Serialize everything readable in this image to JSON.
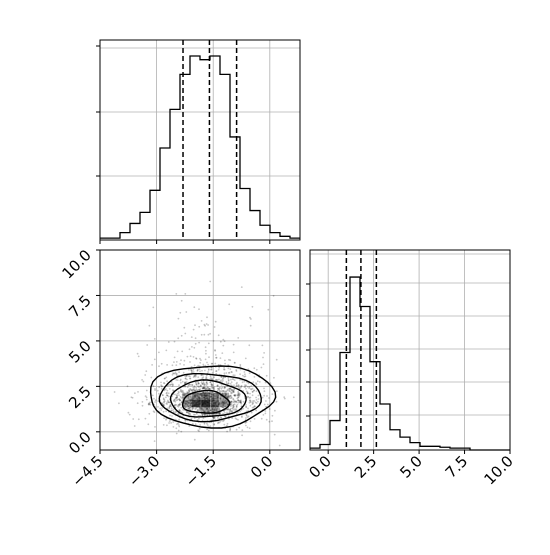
{
  "chart_data": {
    "type": "corner",
    "parameters": [
      {
        "name": "param_0",
        "label": ""
      },
      {
        "name": "param_1",
        "label": ""
      }
    ],
    "histogram_x": {
      "type": "histogram",
      "range": [
        -4.5,
        0.8
      ],
      "quantiles": [
        -2.3,
        -1.6,
        -0.88
      ],
      "bins": [
        {
          "x0": -4.5,
          "x1": -4.235,
          "count": 0.01
        },
        {
          "x0": -4.235,
          "x1": -3.97,
          "count": 0.01
        },
        {
          "x0": -3.97,
          "x1": -3.705,
          "count": 0.04
        },
        {
          "x0": -3.705,
          "x1": -3.44,
          "count": 0.09
        },
        {
          "x0": -3.44,
          "x1": -3.175,
          "count": 0.15
        },
        {
          "x0": -3.175,
          "x1": -2.91,
          "count": 0.27
        },
        {
          "x0": -2.91,
          "x1": -2.645,
          "count": 0.5
        },
        {
          "x0": -2.645,
          "x1": -2.38,
          "count": 0.71
        },
        {
          "x0": -2.38,
          "x1": -2.115,
          "count": 0.9
        },
        {
          "x0": -2.115,
          "x1": -1.85,
          "count": 1.0
        },
        {
          "x0": -1.85,
          "x1": -1.585,
          "count": 0.98
        },
        {
          "x0": -1.585,
          "x1": -1.32,
          "count": 1.0
        },
        {
          "x0": -1.32,
          "x1": -1.055,
          "count": 0.9
        },
        {
          "x0": -1.055,
          "x1": -0.79,
          "count": 0.56
        },
        {
          "x0": -0.79,
          "x1": -0.525,
          "count": 0.28
        },
        {
          "x0": -0.525,
          "x1": -0.26,
          "count": 0.16
        },
        {
          "x0": -0.26,
          "x1": 0.005,
          "count": 0.08
        },
        {
          "x0": 0.005,
          "x1": 0.27,
          "count": 0.04
        },
        {
          "x0": 0.27,
          "x1": 0.535,
          "count": 0.02
        },
        {
          "x0": 0.535,
          "x1": 0.8,
          "count": 0.01
        }
      ]
    },
    "histogram_y": {
      "type": "histogram",
      "range": [
        -1.0,
        10.0
      ],
      "quantiles": [
        1.0,
        1.8,
        2.65
      ],
      "bins": [
        {
          "x0": -1.0,
          "x1": -0.45,
          "count": 0.01
        },
        {
          "x0": -0.45,
          "x1": 0.1,
          "count": 0.03
        },
        {
          "x0": 0.1,
          "x1": 0.65,
          "count": 0.16
        },
        {
          "x0": 0.65,
          "x1": 1.2,
          "count": 0.53
        },
        {
          "x0": 1.2,
          "x1": 1.75,
          "count": 0.94
        },
        {
          "x0": 1.75,
          "x1": 2.3,
          "count": 0.78
        },
        {
          "x0": 2.3,
          "x1": 2.85,
          "count": 0.48
        },
        {
          "x0": 2.85,
          "x1": 3.4,
          "count": 0.25
        },
        {
          "x0": 3.4,
          "x1": 3.95,
          "count": 0.11
        },
        {
          "x0": 3.95,
          "x1": 4.5,
          "count": 0.07
        },
        {
          "x0": 4.5,
          "x1": 5.05,
          "count": 0.04
        },
        {
          "x0": 5.05,
          "x1": 5.6,
          "count": 0.02
        },
        {
          "x0": 5.6,
          "x1": 6.15,
          "count": 0.02
        },
        {
          "x0": 6.15,
          "x1": 6.7,
          "count": 0.015
        },
        {
          "x0": 6.7,
          "x1": 7.25,
          "count": 0.01
        },
        {
          "x0": 7.25,
          "x1": 7.8,
          "count": 0.01
        },
        {
          "x0": 7.8,
          "x1": 8.35,
          "count": 0.0
        },
        {
          "x0": 8.35,
          "x1": 8.9,
          "count": 0.0
        },
        {
          "x0": 8.9,
          "x1": 9.45,
          "count": 0.0
        },
        {
          "x0": 9.45,
          "x1": 10.0,
          "count": 0.0
        }
      ]
    },
    "scatter_2d": {
      "type": "scatter",
      "x_range": [
        -4.5,
        0.8
      ],
      "y_range": [
        -1.0,
        10.0
      ],
      "center": [
        -1.65,
        1.7
      ],
      "contours": [
        {
          "level": "inner",
          "cx": -1.7,
          "cy": 1.6,
          "rx": 0.62,
          "ry": 0.62
        },
        {
          "level": "middle",
          "cx": -1.65,
          "cy": 1.75,
          "rx": 1.0,
          "ry": 1.0
        },
        {
          "level": "mid-outer",
          "cx": -1.6,
          "cy": 1.85,
          "rx": 1.35,
          "ry": 1.3
        },
        {
          "level": "outer",
          "cx": -1.55,
          "cy": 1.9,
          "rx": 1.65,
          "ry": 1.7
        }
      ]
    },
    "axes": {
      "x_ticks": [
        "−4.5",
        "−3.0",
        "−1.5",
        "0.0"
      ],
      "x_tick_values": [
        -4.5,
        -3.0,
        -1.5,
        0.0
      ],
      "y_ticks": [
        "0.0",
        "2.5",
        "5.0",
        "7.5",
        "10.0"
      ],
      "y_tick_values": [
        0.0,
        2.5,
        5.0,
        7.5,
        10.0
      ],
      "y_hist_ticks": [
        "0.0",
        "2.5",
        "5.0",
        "7.5",
        "10.0"
      ],
      "y_hist_tick_values": [
        0.0,
        2.5,
        5.0,
        7.5,
        10.0
      ]
    },
    "grid": true
  }
}
